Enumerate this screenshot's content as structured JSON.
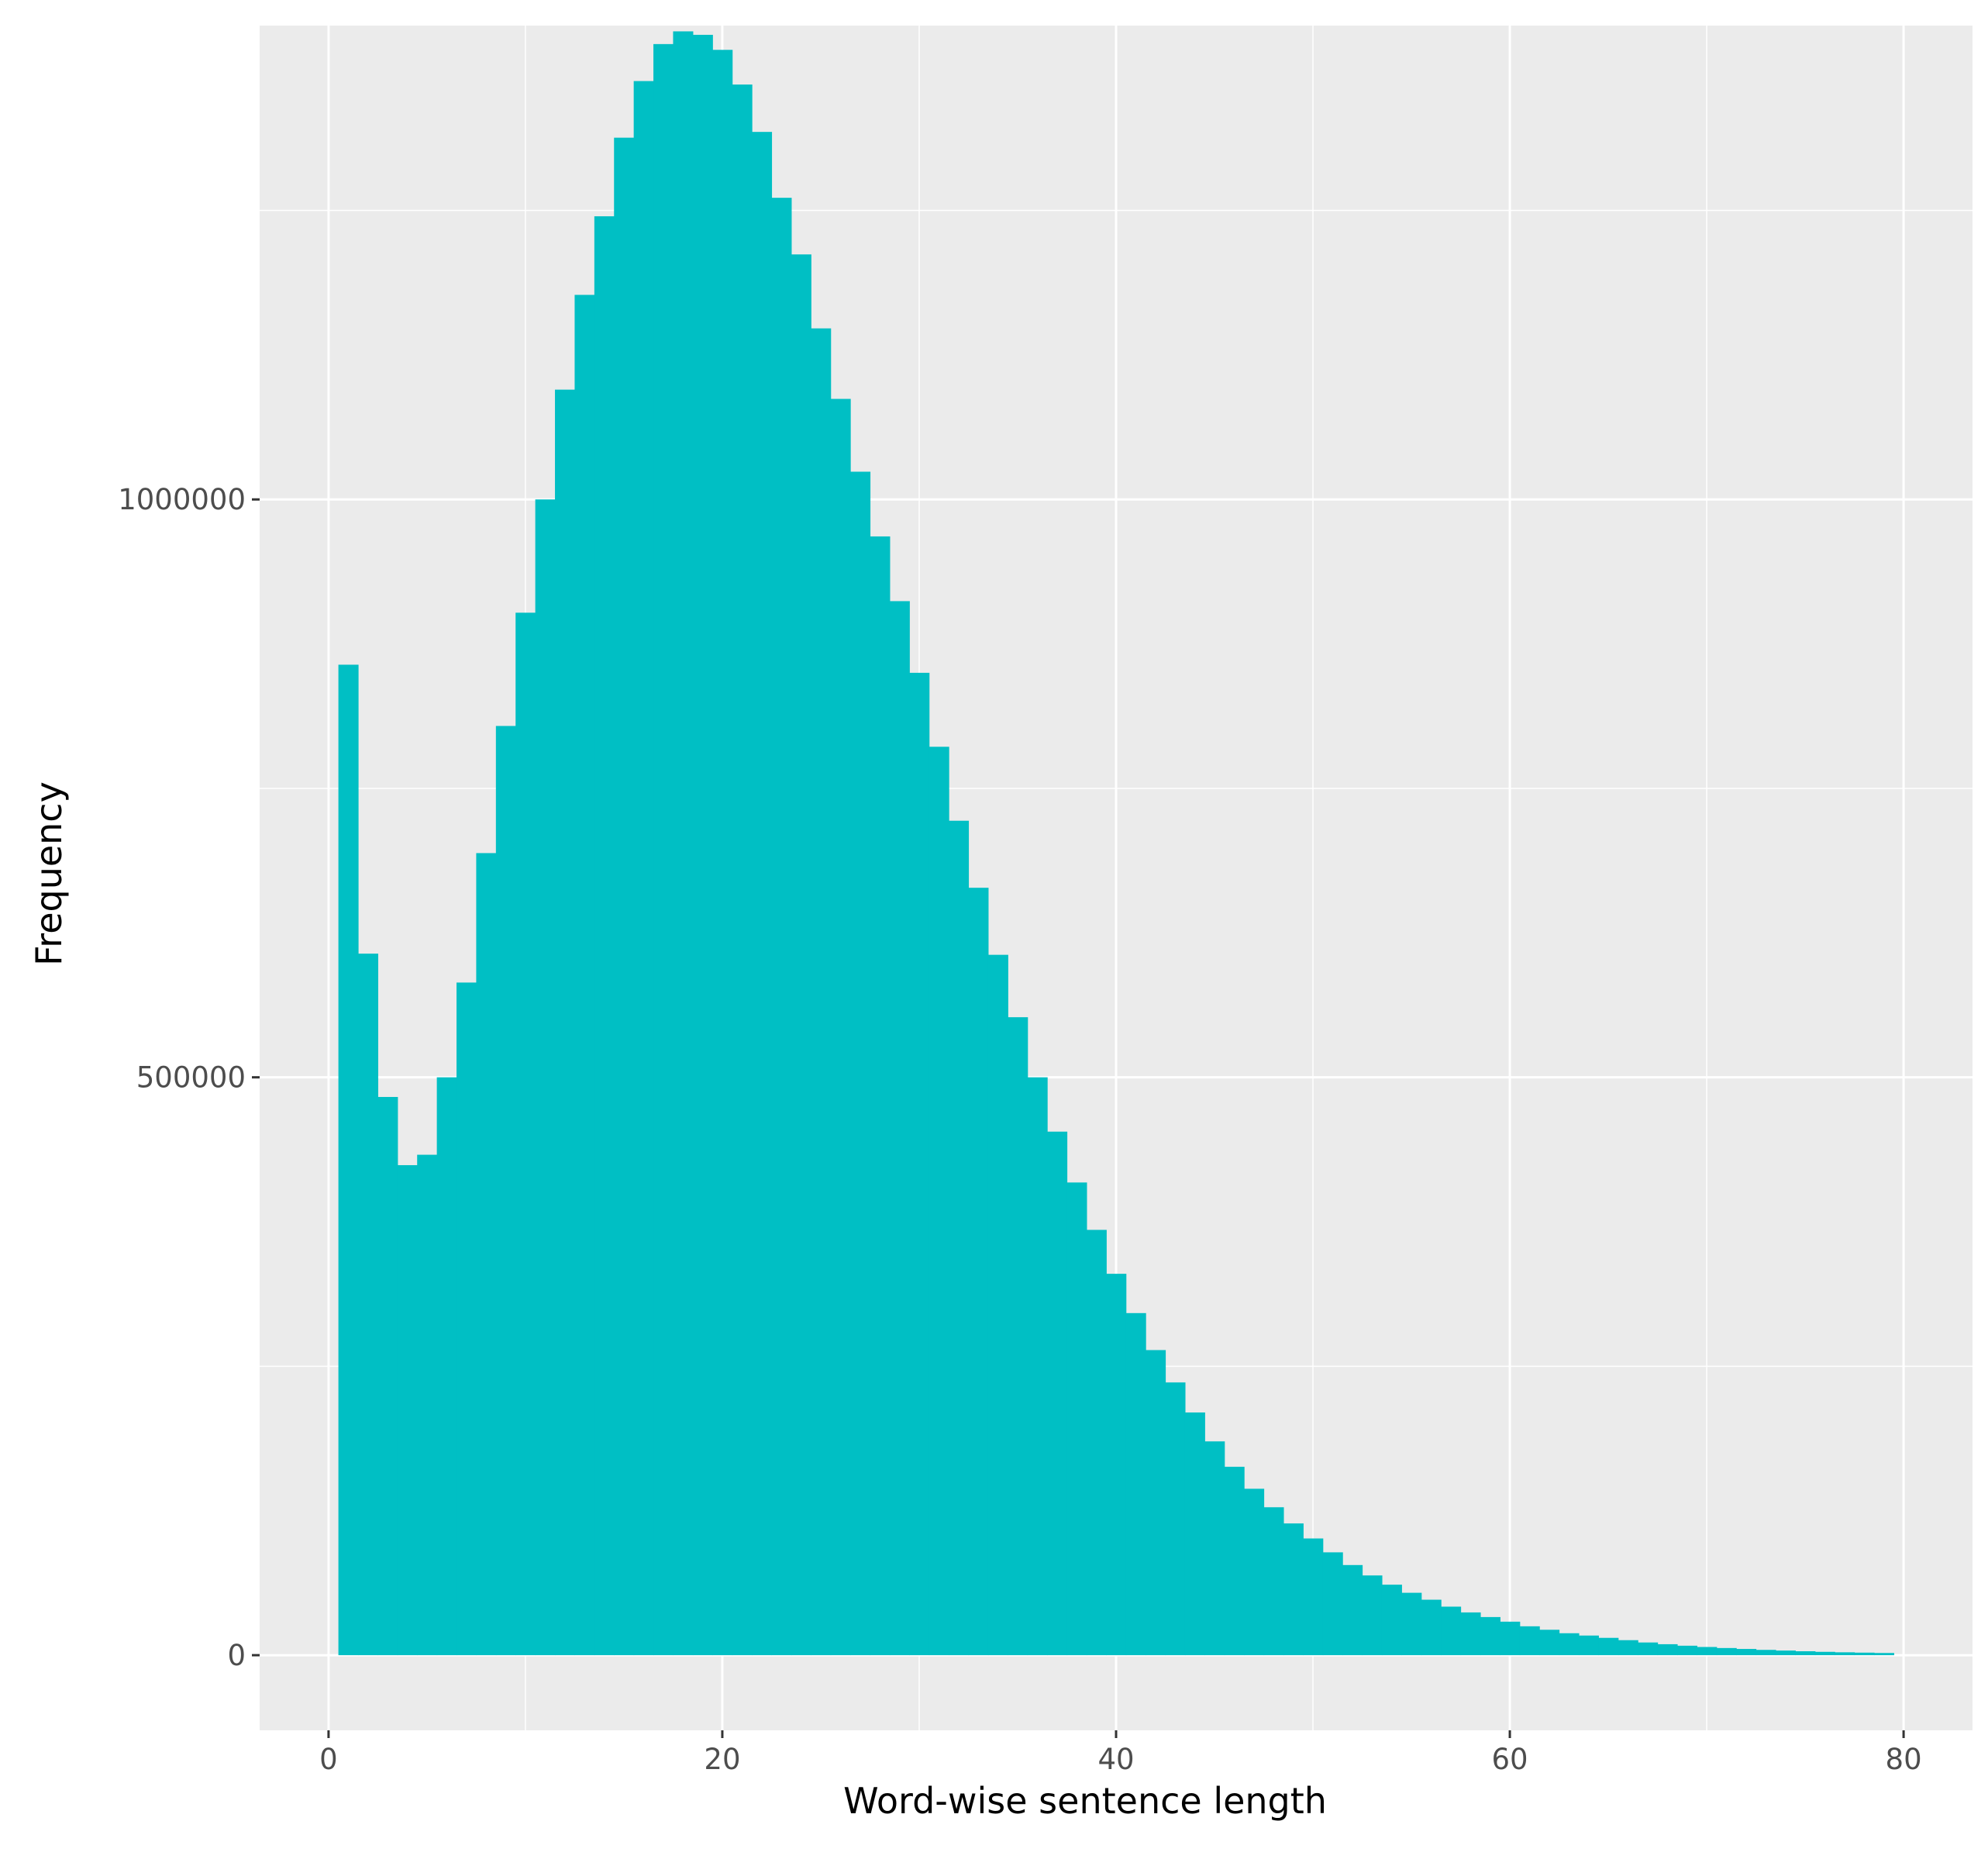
{
  "chart_data": {
    "type": "bar",
    "subtype": "histogram",
    "title": "",
    "xlabel": "Word-wise sentence length",
    "ylabel": "Frequency",
    "fill_color": "#00BFC4",
    "panel_color": "#EBEBEB",
    "grid_color": "#FFFFFF",
    "grid": true,
    "xlim": [
      -3.5,
      83.5
    ],
    "ylim": [
      -65000,
      1410000
    ],
    "x_ticks": [
      0,
      20,
      40,
      60,
      80
    ],
    "x_tick_labels": [
      "0",
      "20",
      "40",
      "60",
      "80"
    ],
    "y_ticks": [
      0,
      500000,
      1000000
    ],
    "y_tick_labels": [
      "0",
      "500000",
      "1000000"
    ],
    "y_minor_gridlines": [
      250000,
      750000,
      1250000
    ],
    "bin_start": 0.5,
    "bin_width": 1,
    "x": [
      1,
      2,
      3,
      4,
      5,
      6,
      7,
      8,
      9,
      10,
      11,
      12,
      13,
      14,
      15,
      16,
      17,
      18,
      19,
      20,
      21,
      22,
      23,
      24,
      25,
      26,
      27,
      28,
      29,
      30,
      31,
      32,
      33,
      34,
      35,
      36,
      37,
      38,
      39,
      40,
      41,
      42,
      43,
      44,
      45,
      46,
      47,
      48,
      49,
      50,
      51,
      52,
      53,
      54,
      55,
      56,
      57,
      58,
      59,
      60,
      61,
      62,
      63,
      64,
      65,
      66,
      67,
      68,
      69,
      70,
      71,
      72,
      73,
      74,
      75,
      76,
      77,
      78,
      79
    ],
    "values": [
      857000,
      607000,
      483000,
      424000,
      433000,
      500000,
      582000,
      694000,
      804000,
      902000,
      1000000,
      1095000,
      1177000,
      1245000,
      1313000,
      1362000,
      1394000,
      1405000,
      1402000,
      1389000,
      1359000,
      1318000,
      1261000,
      1212000,
      1148000,
      1087000,
      1024000,
      968000,
      912000,
      850000,
      786000,
      722000,
      664000,
      606000,
      552000,
      500000,
      453000,
      409000,
      368000,
      330000,
      296000,
      264000,
      236000,
      210000,
      185000,
      163000,
      144000,
      128000,
      114000,
      101000,
      89000,
      78000,
      69000,
      61000,
      54000,
      48000,
      42000,
      37000,
      33000,
      29000,
      25000,
      22000,
      19000,
      17000,
      15000,
      13000,
      11000,
      9500,
      8200,
      7100,
      6200,
      5400,
      4600,
      4000,
      3400,
      2900,
      2500,
      2200,
      1900
    ]
  }
}
